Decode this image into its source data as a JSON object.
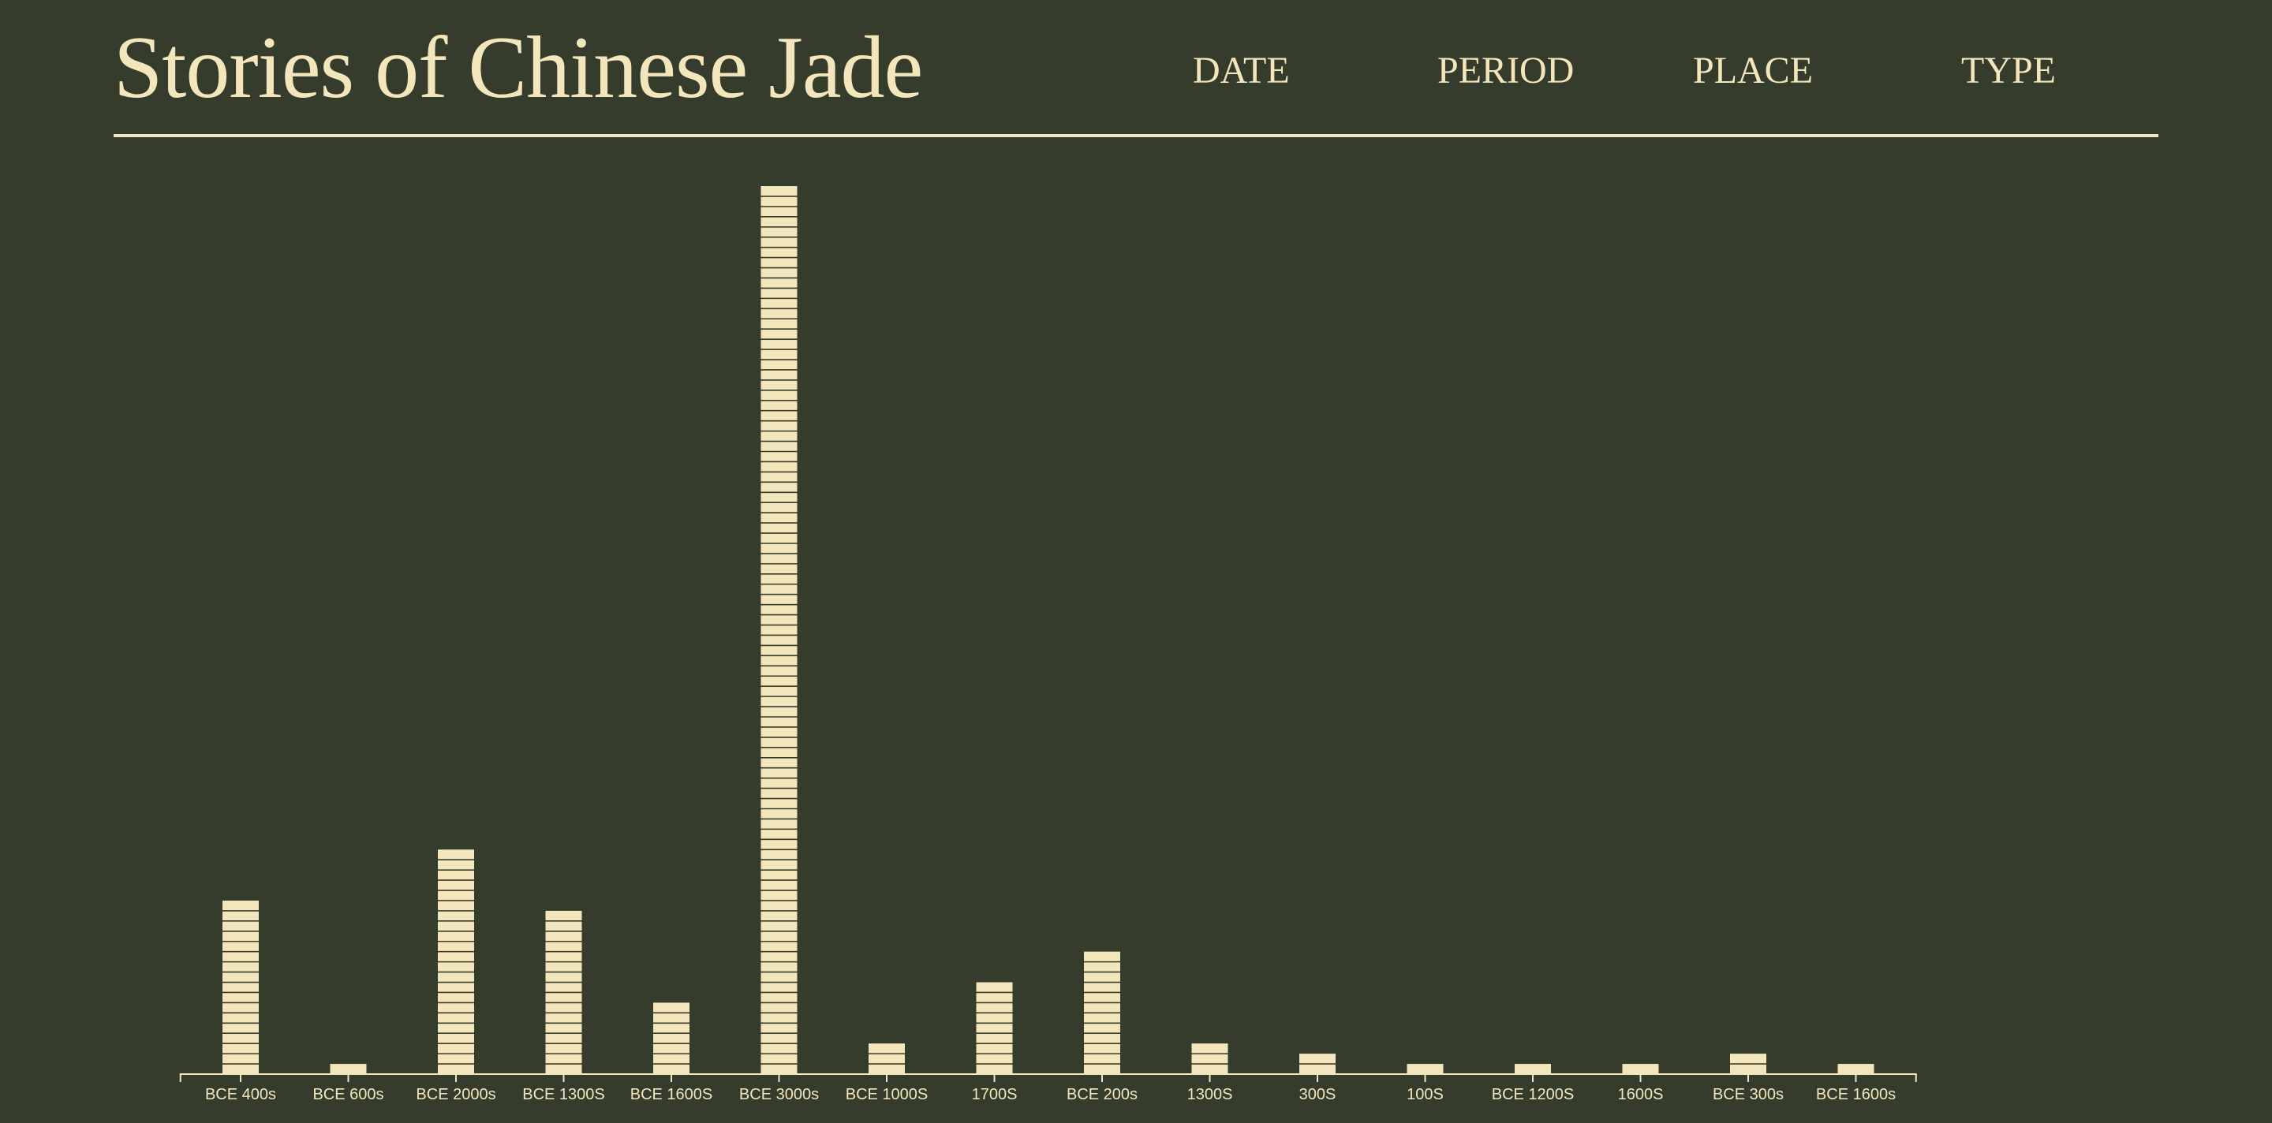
{
  "header": {
    "title": "Stories of Chinese Jade",
    "nav": [
      {
        "label": "DATE"
      },
      {
        "label": "PERIOD"
      },
      {
        "label": "PLACE"
      },
      {
        "label": "TYPE"
      }
    ]
  },
  "colors": {
    "background": "#353c2b",
    "accent": "#f3e6bd",
    "stripe": "#353c2b"
  },
  "chart_data": {
    "type": "bar",
    "style": "stacked unit blocks (one block per item)",
    "categories": [
      "BCE 400s",
      "BCE 600s",
      "BCE 2000s",
      "BCE 1300S",
      "BCE 1600S",
      "BCE 3000s",
      "BCE 1000S",
      "1700S",
      "BCE 200s",
      "1300S",
      "300S",
      "100S",
      "BCE 1200S",
      "1600S",
      "BCE 300s",
      "BCE 1600s"
    ],
    "values": [
      17,
      1,
      22,
      16,
      7,
      87,
      3,
      9,
      12,
      3,
      2,
      1,
      1,
      1,
      2,
      1
    ],
    "title": "",
    "xlabel": "",
    "ylabel": "",
    "grid": false
  }
}
